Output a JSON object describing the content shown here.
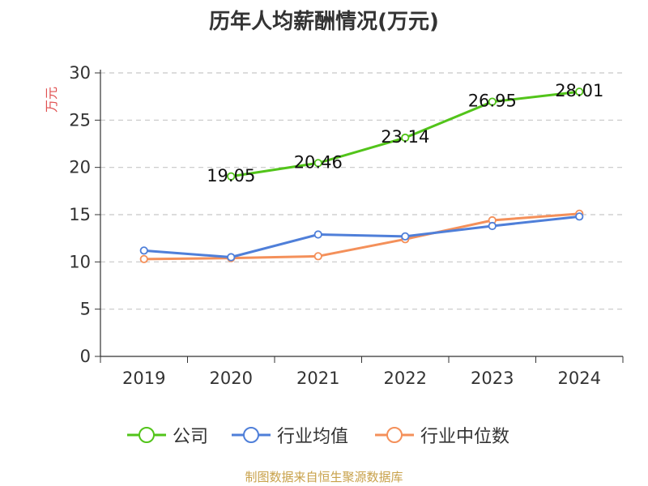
{
  "chart_data": {
    "type": "line",
    "title": "历年人均薪酬情况(万元)",
    "ylabel": "万元",
    "xlabel": "",
    "categories": [
      "2019",
      "2020",
      "2021",
      "2022",
      "2023",
      "2024"
    ],
    "ylim": [
      0,
      30
    ],
    "yticks": [
      0,
      5,
      10,
      15,
      20,
      25,
      30
    ],
    "grid": true,
    "legend_position": "bottom",
    "series": [
      {
        "name": "公司",
        "color": "#52c41a",
        "values": [
          null,
          19.05,
          20.46,
          23.14,
          26.95,
          28.01
        ],
        "labels": [
          null,
          "19.05",
          "20.46",
          "23.14",
          "26.95",
          "28.01"
        ]
      },
      {
        "name": "行业均值",
        "color": "#4f7fd9",
        "values": [
          11.2,
          10.5,
          12.9,
          12.7,
          13.8,
          14.8
        ]
      },
      {
        "name": "行业中位数",
        "color": "#f4905a",
        "values": [
          10.3,
          10.4,
          10.6,
          12.4,
          14.4,
          15.1
        ]
      }
    ]
  },
  "footer": {
    "source": "制图数据来自恒生聚源数据库"
  }
}
